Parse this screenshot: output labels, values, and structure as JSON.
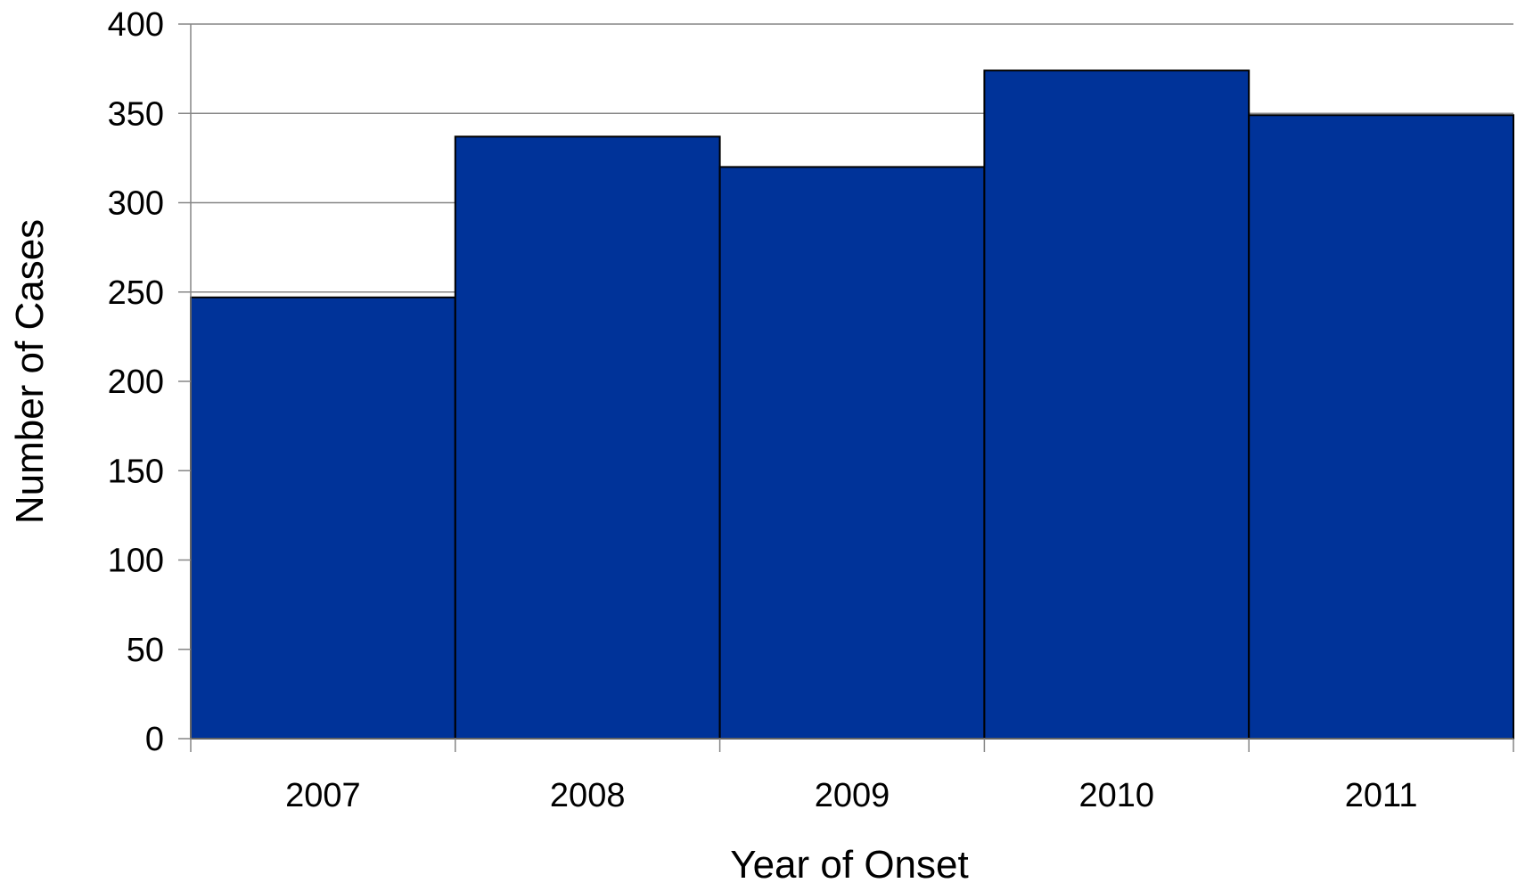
{
  "chart_data": {
    "type": "bar",
    "title": "",
    "xlabel": "Year of Onset",
    "ylabel": "Number of Cases",
    "categories": [
      "2007",
      "2008",
      "2009",
      "2010",
      "2011"
    ],
    "values": [
      247,
      337,
      320,
      374,
      349
    ],
    "ylim": [
      0,
      400
    ],
    "yticks": [
      0,
      50,
      100,
      150,
      200,
      250,
      300,
      350,
      400
    ],
    "ytick_labels": [
      "0",
      "50",
      "100",
      "150",
      "200",
      "250",
      "300",
      "350",
      "400"
    ],
    "grid": "horizontal",
    "legend": "none",
    "bar_color": "#003399",
    "bar_edge_color": "#000000",
    "grid_color": "#868686"
  }
}
